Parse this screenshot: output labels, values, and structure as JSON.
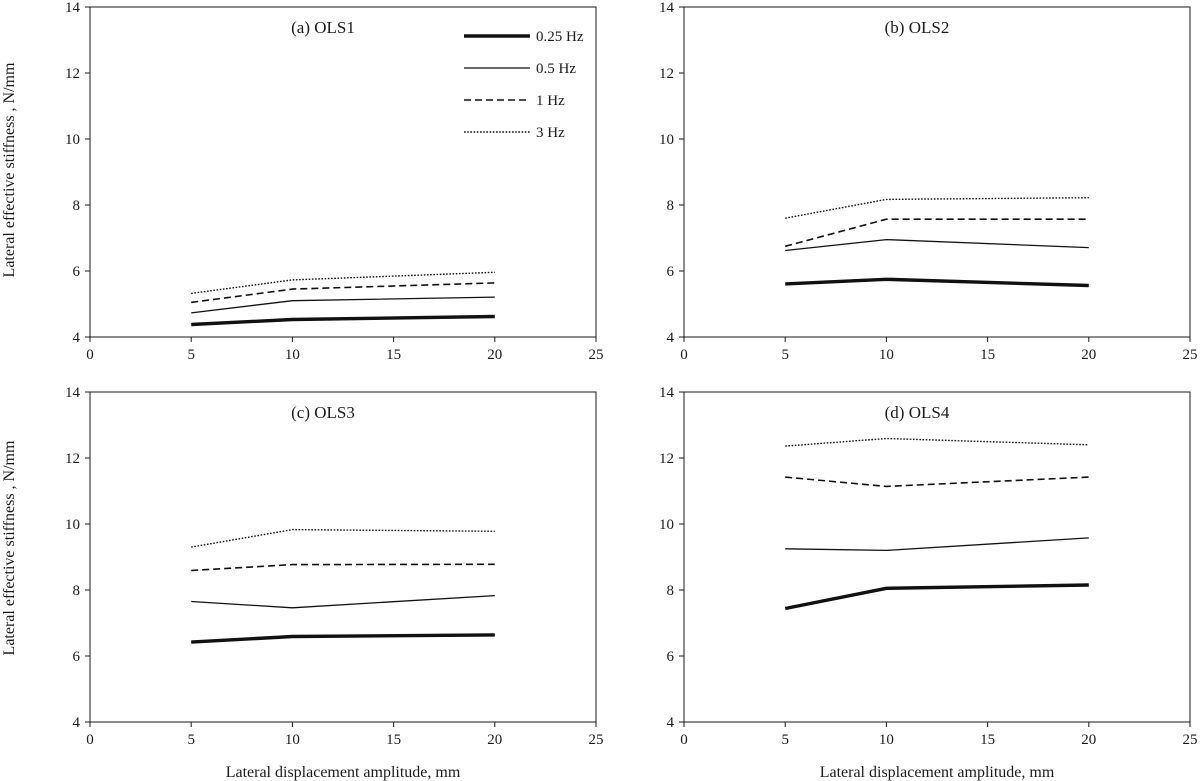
{
  "figure": {
    "ylabel": "Lateral effective stiffness , N/mm",
    "xlabel": "Lateral displacement amplitude, mm"
  },
  "legend": [
    {
      "name": "0.25 Hz",
      "style": "thick"
    },
    {
      "name": "0.5 Hz",
      "style": "solid"
    },
    {
      "name": "1 Hz",
      "style": "dashed"
    },
    {
      "name": "3 Hz",
      "style": "dotted"
    }
  ],
  "chart_data": [
    {
      "type": "line",
      "title": "(a) OLS1",
      "x": [
        5,
        10,
        20
      ],
      "xlim": [
        0,
        25
      ],
      "ylim": [
        4,
        14
      ],
      "xticks": [
        0,
        5,
        10,
        15,
        20,
        25
      ],
      "yticks": [
        4,
        6,
        8,
        10,
        12,
        14
      ],
      "series": [
        {
          "name": "0.25 Hz",
          "values": [
            4.38,
            4.53,
            4.62
          ]
        },
        {
          "name": "0.5 Hz",
          "values": [
            4.73,
            5.1,
            5.21
          ]
        },
        {
          "name": "1 Hz",
          "values": [
            5.05,
            5.45,
            5.64
          ]
        },
        {
          "name": "3 Hz",
          "values": [
            5.32,
            5.73,
            5.96
          ]
        }
      ]
    },
    {
      "type": "line",
      "title": "(b) OLS2",
      "x": [
        5,
        10,
        20
      ],
      "xlim": [
        0,
        25
      ],
      "ylim": [
        4,
        14
      ],
      "xticks": [
        0,
        5,
        10,
        15,
        20,
        25
      ],
      "yticks": [
        4,
        6,
        8,
        10,
        12,
        14
      ],
      "series": [
        {
          "name": "0.25 Hz",
          "values": [
            5.61,
            5.75,
            5.56
          ]
        },
        {
          "name": "0.5 Hz",
          "values": [
            6.62,
            6.95,
            6.71
          ]
        },
        {
          "name": "1 Hz",
          "values": [
            6.75,
            7.57,
            7.57
          ]
        },
        {
          "name": "3 Hz",
          "values": [
            7.6,
            8.17,
            8.22
          ]
        }
      ]
    },
    {
      "type": "line",
      "title": "(c) OLS3",
      "x": [
        5,
        10,
        20
      ],
      "xlim": [
        0,
        25
      ],
      "ylim": [
        4,
        14
      ],
      "xticks": [
        0,
        5,
        10,
        15,
        20,
        25
      ],
      "yticks": [
        4,
        6,
        8,
        10,
        12,
        14
      ],
      "series": [
        {
          "name": "0.25 Hz",
          "values": [
            6.42,
            6.59,
            6.64
          ]
        },
        {
          "name": "0.5 Hz",
          "values": [
            7.65,
            7.46,
            7.83
          ]
        },
        {
          "name": "1 Hz",
          "values": [
            8.59,
            8.77,
            8.78
          ]
        },
        {
          "name": "3 Hz",
          "values": [
            9.3,
            9.83,
            9.78
          ]
        }
      ]
    },
    {
      "type": "line",
      "title": "(d) OLS4",
      "x": [
        5,
        10,
        20
      ],
      "xlim": [
        0,
        25
      ],
      "ylim": [
        4,
        14
      ],
      "xticks": [
        0,
        5,
        10,
        15,
        20,
        25
      ],
      "yticks": [
        4,
        6,
        8,
        10,
        12,
        14
      ],
      "series": [
        {
          "name": "0.25 Hz",
          "values": [
            7.44,
            8.05,
            8.15
          ]
        },
        {
          "name": "0.5 Hz",
          "values": [
            9.25,
            9.2,
            9.58
          ]
        },
        {
          "name": "1 Hz",
          "values": [
            11.42,
            11.14,
            11.42
          ]
        },
        {
          "name": "3 Hz",
          "values": [
            12.36,
            12.59,
            12.4
          ]
        }
      ]
    }
  ]
}
